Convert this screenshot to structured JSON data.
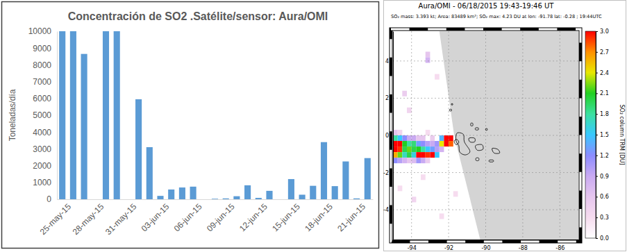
{
  "chart_data": [
    {
      "type": "bar",
      "title": "Concentración de SO2 .Satélite/sensor: Aura/OMI",
      "y_label": "Toneladas/día",
      "categories": [
        "25-may-15",
        null,
        null,
        "28-may-15",
        null,
        null,
        "31-may-15",
        null,
        null,
        "03-jun-15",
        null,
        null,
        "06-jun-15",
        null,
        null,
        "09-jun-15",
        null,
        null,
        "12-jun-15",
        null,
        null,
        "15-jun-15",
        null,
        null,
        "18-jun-15",
        null,
        null,
        "21-jun-15",
        null
      ],
      "values": [
        10000,
        10000,
        8650,
        null,
        10000,
        10000,
        null,
        5950,
        3100,
        200,
        580,
        700,
        750,
        null,
        30,
        50,
        180,
        830,
        80,
        500,
        null,
        1200,
        270,
        800,
        3400,
        780,
        2250,
        50,
        2450
      ],
      "color": "#5b9bd5",
      "ylim": [
        0,
        10000
      ],
      "yticks": [
        0,
        1000,
        2000,
        3000,
        4000,
        5000,
        6000,
        7000,
        8000,
        9000,
        10000
      ],
      "grid": false
    },
    {
      "type": "heatmap",
      "title": "Aura/OMI - 06/18/2015 19:43-19:46 UT",
      "subtitle": "SO₂ mass: 3.393 kt; Area: 83489 km²; SO₂ max: 4.23 DU at lon: -91.78 lat: -0.28 ; 19:44UTC",
      "xlim": [
        -95,
        -85
      ],
      "ylim": [
        -5.6,
        5.6
      ],
      "xticks": [
        -94,
        -92,
        -90,
        -88,
        -86
      ],
      "yticks": [
        -4,
        -2,
        0,
        2,
        4
      ],
      "grid": true,
      "cells": [
        [
          -94.875,
          -0.15,
          1.8
        ],
        [
          -94.625,
          -0.15,
          1.5
        ],
        [
          -94.375,
          -0.15,
          1.2
        ],
        [
          -94.125,
          -0.15,
          0.9
        ],
        [
          -93.875,
          -0.15,
          0.9
        ],
        [
          -93.625,
          -0.15,
          0.6
        ],
        [
          -93.375,
          -0.15,
          0.6
        ],
        [
          -92.875,
          -0.15,
          0.5
        ],
        [
          -92.375,
          -0.15,
          1.4
        ],
        [
          -92.125,
          -0.15,
          3.5
        ],
        [
          -91.875,
          -0.15,
          4.23
        ],
        [
          -94.875,
          -0.45,
          3.2
        ],
        [
          -94.625,
          -0.45,
          3.0
        ],
        [
          -94.375,
          -0.45,
          2.1
        ],
        [
          -94.125,
          -0.45,
          1.8
        ],
        [
          -93.875,
          -0.45,
          1.9
        ],
        [
          -93.625,
          -0.45,
          1.3
        ],
        [
          -93.375,
          -0.45,
          1.2
        ],
        [
          -93.125,
          -0.45,
          1.0
        ],
        [
          -92.875,
          -0.45,
          0.9
        ],
        [
          -92.625,
          -0.45,
          1.1
        ],
        [
          -92.375,
          -0.45,
          2.4
        ],
        [
          -92.125,
          -0.45,
          3.1
        ],
        [
          -91.875,
          -0.45,
          2.8
        ],
        [
          -94.875,
          -0.75,
          3.4
        ],
        [
          -94.625,
          -0.75,
          2.9
        ],
        [
          -94.375,
          -0.75,
          2.0
        ],
        [
          -94.125,
          -0.75,
          2.2
        ],
        [
          -93.875,
          -0.75,
          2.0
        ],
        [
          -93.625,
          -0.75,
          2.1
        ],
        [
          -93.375,
          -0.75,
          1.8
        ],
        [
          -93.125,
          -0.75,
          1.5
        ],
        [
          -92.875,
          -0.75,
          1.3
        ],
        [
          -92.625,
          -0.75,
          1.0
        ],
        [
          -92.375,
          -0.75,
          0.8
        ],
        [
          -94.875,
          -1.05,
          2.6
        ],
        [
          -94.625,
          -1.05,
          2.2
        ],
        [
          -94.375,
          -1.05,
          1.7
        ],
        [
          -94.125,
          -1.05,
          2.0
        ],
        [
          -93.875,
          -1.05,
          1.6
        ],
        [
          -93.625,
          -1.05,
          3.0
        ],
        [
          -93.375,
          -1.05,
          3.2
        ],
        [
          -93.125,
          -1.05,
          2.9
        ],
        [
          -92.875,
          -1.05,
          3.1
        ],
        [
          -92.625,
          -1.05,
          1.5
        ],
        [
          -94.875,
          -1.35,
          1.2
        ],
        [
          -94.625,
          -1.35,
          1.0
        ],
        [
          -94.375,
          -1.35,
          0.8
        ],
        [
          -94.125,
          -1.35,
          0.6
        ],
        [
          -93.875,
          -1.35,
          0.7
        ],
        [
          -93.625,
          -1.35,
          1.1
        ],
        [
          -93.375,
          -1.35,
          0.9
        ],
        [
          -93.125,
          -1.35,
          0.5
        ],
        [
          -94.875,
          0.15,
          0.6
        ],
        [
          -94.625,
          0.15,
          0.4
        ],
        [
          -93.125,
          0.15,
          0.3
        ],
        [
          -94.375,
          2.25,
          0.5
        ],
        [
          -93.125,
          4.35,
          0.6
        ],
        [
          -93.125,
          4.05,
          0.8
        ],
        [
          -92.625,
          3.15,
          0.3
        ],
        [
          -94.625,
          -2.85,
          0.3
        ],
        [
          -93.875,
          -3.45,
          0.4
        ],
        [
          -92.375,
          -4.35,
          0.3
        ],
        [
          -91.625,
          -3.15,
          0.3
        ],
        [
          -94.125,
          1.35,
          0.4
        ],
        [
          -93.375,
          -2.25,
          0.3
        ]
      ],
      "colorbar_label": "SO₂ column TRM [DU]",
      "colorbar_range": [
        0,
        3
      ],
      "colorbar_ticks": [
        {
          "value": 0,
          "label": "0.0"
        },
        0.3,
        0.6,
        0.9,
        1.2,
        1.5,
        1.8,
        2.1,
        2.4,
        2.7,
        {
          "value": 3,
          "label": "3.0"
        }
      ]
    }
  ]
}
